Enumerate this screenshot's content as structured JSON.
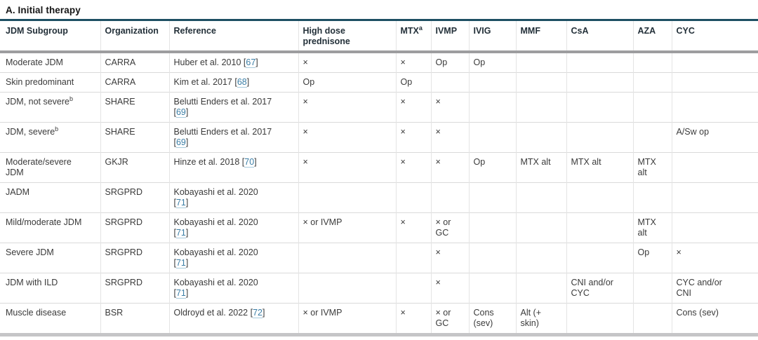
{
  "section_title": "A. Initial therapy",
  "colors": {
    "accent_rule": "#1d4f63",
    "header_rule": "#9d9d9f",
    "bottom_rule": "#c5c5c7",
    "link": "#3b7ea6"
  },
  "table": {
    "columns": [
      {
        "label": "JDM Subgroup"
      },
      {
        "label": "Organization"
      },
      {
        "label": "Reference"
      },
      {
        "label": "High dose\nprednisone"
      },
      {
        "label": "MTX",
        "sup": "a"
      },
      {
        "label": "IVMP"
      },
      {
        "label": "IVIG"
      },
      {
        "label": "MMF"
      },
      {
        "label": "CsA"
      },
      {
        "label": "AZA"
      },
      {
        "label": "CYC"
      }
    ],
    "rows": [
      {
        "subgroup": "Moderate JDM",
        "subgroup_sup": "",
        "organization": "CARRA",
        "reference": "Huber et al. 2010",
        "reference_num": "67",
        "reference_break": false,
        "high_dose_prednisone": "×",
        "mtx": "×",
        "ivmp": "Op",
        "ivig": "Op",
        "mmf": "",
        "csa": "",
        "aza": "",
        "cyc": ""
      },
      {
        "subgroup": "Skin predominant",
        "subgroup_sup": "",
        "organization": "CARRA",
        "reference": "Kim et al. 2017",
        "reference_num": "68",
        "reference_break": false,
        "high_dose_prednisone": "Op",
        "mtx": "Op",
        "ivmp": "",
        "ivig": "",
        "mmf": "",
        "csa": "",
        "aza": "",
        "cyc": ""
      },
      {
        "subgroup": "JDM, not severe",
        "subgroup_sup": "b",
        "organization": "SHARE",
        "reference": "Belutti Enders et al. 2017",
        "reference_num": "69",
        "reference_break": true,
        "high_dose_prednisone": "×",
        "mtx": "×",
        "ivmp": "×",
        "ivig": "",
        "mmf": "",
        "csa": "",
        "aza": "",
        "cyc": ""
      },
      {
        "subgroup": "JDM, severe",
        "subgroup_sup": "b",
        "organization": "SHARE",
        "reference": "Belutti Enders et al. 2017",
        "reference_num": "69",
        "reference_break": true,
        "high_dose_prednisone": "×",
        "mtx": "×",
        "ivmp": "×",
        "ivig": "",
        "mmf": "",
        "csa": "",
        "aza": "",
        "cyc": "A/Sw op"
      },
      {
        "subgroup": "Moderate/severe\nJDM",
        "subgroup_sup": "",
        "organization": "GKJR",
        "reference": "Hinze et al. 2018",
        "reference_num": "70",
        "reference_break": false,
        "high_dose_prednisone": "×",
        "mtx": "×",
        "ivmp": "×",
        "ivig": "Op",
        "mmf": "MTX alt",
        "csa": "MTX alt",
        "aza": "MTX\nalt",
        "cyc": ""
      },
      {
        "subgroup": "JADM",
        "subgroup_sup": "",
        "organization": "SRGPRD",
        "reference": "Kobayashi et al. 2020",
        "reference_num": "71",
        "reference_break": true,
        "high_dose_prednisone": "",
        "mtx": "",
        "ivmp": "",
        "ivig": "",
        "mmf": "",
        "csa": "",
        "aza": "",
        "cyc": ""
      },
      {
        "subgroup": "Mild/moderate JDM",
        "subgroup_sup": "",
        "organization": "SRGPRD",
        "reference": "Kobayashi et al. 2020",
        "reference_num": "71",
        "reference_break": true,
        "high_dose_prednisone": "× or IVMP",
        "mtx": "×",
        "ivmp": "× or\nGC",
        "ivig": "",
        "mmf": "",
        "csa": "",
        "aza": "MTX\nalt",
        "cyc": ""
      },
      {
        "subgroup": "Severe JDM",
        "subgroup_sup": "",
        "organization": "SRGPRD",
        "reference": "Kobayashi et al. 2020",
        "reference_num": "71",
        "reference_break": true,
        "high_dose_prednisone": "",
        "mtx": "",
        "ivmp": "×",
        "ivig": "",
        "mmf": "",
        "csa": "",
        "aza": "Op",
        "cyc": "×"
      },
      {
        "subgroup": "JDM with ILD",
        "subgroup_sup": "",
        "organization": "SRGPRD",
        "reference": "Kobayashi et al. 2020",
        "reference_num": "71",
        "reference_break": true,
        "high_dose_prednisone": "",
        "mtx": "",
        "ivmp": "×",
        "ivig": "",
        "mmf": "",
        "csa": "CNI and/or\nCYC",
        "aza": "",
        "cyc": "CYC and/or\nCNI"
      },
      {
        "subgroup": "Muscle disease",
        "subgroup_sup": "",
        "organization": "BSR",
        "reference": "Oldroyd et al. 2022",
        "reference_num": "72",
        "reference_break": false,
        "high_dose_prednisone": "× or IVMP",
        "mtx": "×",
        "ivmp": "× or\nGC",
        "ivig": "Cons\n(sev)",
        "mmf": "Alt (+\nskin)",
        "csa": "",
        "aza": "",
        "cyc": "Cons (sev)"
      }
    ]
  }
}
